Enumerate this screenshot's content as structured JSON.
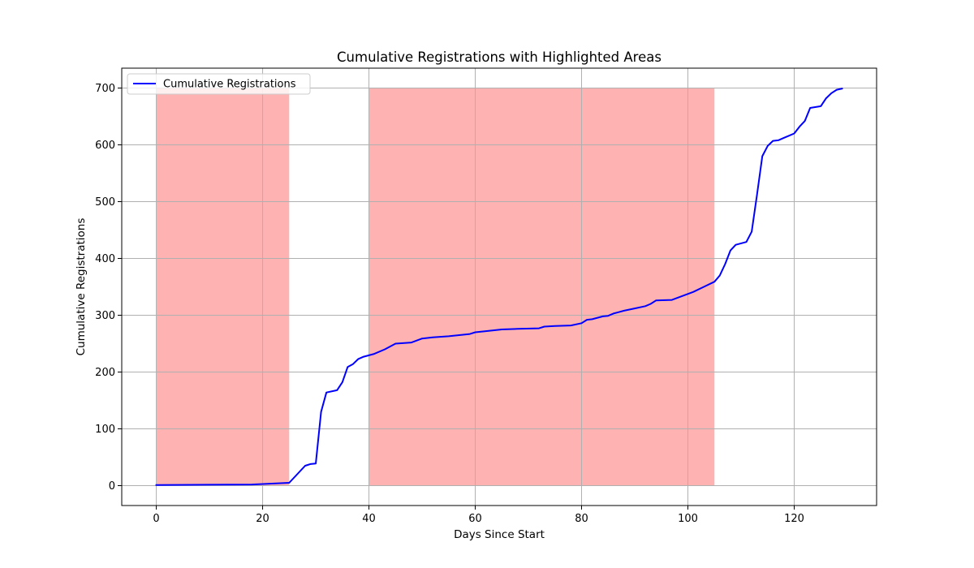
{
  "chart_data": {
    "type": "line",
    "title": "Cumulative Registrations with Highlighted Areas",
    "xlabel": "Days Since Start",
    "ylabel": "Cumulative Registrations",
    "xlim": [
      -6.5,
      135.5
    ],
    "ylim": [
      -35,
      735
    ],
    "xticks": [
      0,
      20,
      40,
      60,
      80,
      100,
      120
    ],
    "yticks": [
      0,
      100,
      200,
      300,
      400,
      500,
      600,
      700
    ],
    "grid": true,
    "legend": {
      "position": "top-left",
      "entries": [
        "Cumulative Registrations"
      ]
    },
    "highlight_color": "#ff0000",
    "highlight_opacity": 0.3,
    "highlight_regions": [
      {
        "x_start": 0,
        "x_end": 25,
        "y_start": 0,
        "y_end": 700
      },
      {
        "x_start": 40,
        "x_end": 105,
        "y_start": 0,
        "y_end": 700
      }
    ],
    "series": [
      {
        "name": "Cumulative Registrations",
        "color": "#0000ff",
        "x": [
          0,
          18,
          25,
          28,
          29,
          30,
          31,
          32,
          34,
          35,
          36,
          37,
          38,
          39,
          41,
          43,
          45,
          48,
          50,
          52,
          55,
          57,
          59,
          60,
          62,
          65,
          68,
          72,
          73,
          75,
          78,
          80,
          81,
          82,
          84,
          85,
          86,
          88,
          90,
          92,
          93,
          94,
          97,
          99,
          101,
          103,
          105,
          106,
          107,
          108,
          109,
          111,
          112,
          113,
          114,
          115,
          116,
          117,
          118,
          119,
          120,
          121,
          122,
          123,
          125,
          126,
          127,
          128,
          129
        ],
        "y": [
          1,
          2,
          5,
          35,
          38,
          39,
          130,
          164,
          168,
          182,
          209,
          214,
          223,
          227,
          232,
          240,
          250,
          252,
          259,
          261,
          263,
          265,
          267,
          270,
          272,
          275,
          276,
          277,
          280,
          281,
          282,
          286,
          292,
          293,
          298,
          299,
          303,
          308,
          312,
          316,
          320,
          326,
          327,
          334,
          341,
          350,
          359,
          370,
          390,
          414,
          424,
          429,
          447,
          512,
          580,
          598,
          607,
          608,
          612,
          616,
          620,
          632,
          642,
          665,
          668,
          682,
          691,
          697,
          699
        ]
      }
    ]
  }
}
